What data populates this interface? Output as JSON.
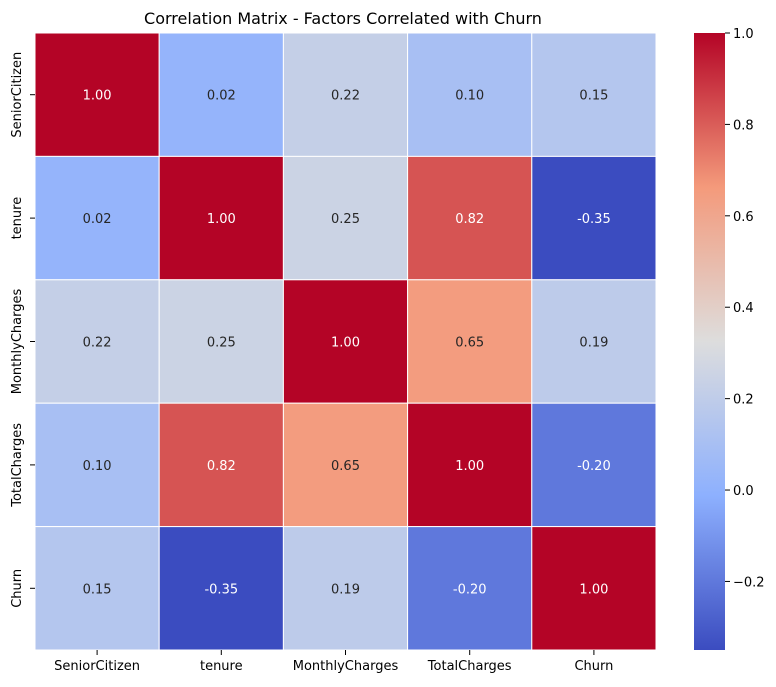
{
  "chart_data": {
    "type": "heatmap",
    "title": "Correlation Matrix - Factors Correlated with Churn",
    "x_labels": [
      "SeniorCitizen",
      "tenure",
      "MonthlyCharges",
      "TotalCharges",
      "Churn"
    ],
    "y_labels": [
      "SeniorCitizen",
      "tenure",
      "MonthlyCharges",
      "TotalCharges",
      "Churn"
    ],
    "values": [
      [
        1.0,
        0.02,
        0.22,
        0.1,
        0.15
      ],
      [
        0.02,
        1.0,
        0.25,
        0.82,
        -0.35
      ],
      [
        0.22,
        0.25,
        1.0,
        0.65,
        0.19
      ],
      [
        0.1,
        0.82,
        0.65,
        1.0,
        -0.2
      ],
      [
        0.15,
        -0.35,
        0.19,
        -0.2,
        1.0
      ]
    ],
    "cell_labels": [
      [
        "1.00",
        "0.02",
        "0.22",
        "0.10",
        "0.15"
      ],
      [
        "0.02",
        "1.00",
        "0.25",
        "0.82",
        "-0.35"
      ],
      [
        "0.22",
        "0.25",
        "1.00",
        "0.65",
        "0.19"
      ],
      [
        "0.10",
        "0.82",
        "0.65",
        "1.00",
        "-0.20"
      ],
      [
        "0.15",
        "-0.35",
        "0.19",
        "-0.20",
        "1.00"
      ]
    ],
    "colormap": "coolwarm",
    "vmin": -0.35,
    "vmax": 1.0,
    "colorbar": {
      "ticks": [
        1.0,
        0.8,
        0.6,
        0.4,
        0.2,
        0.0,
        -0.2
      ],
      "tick_labels": [
        "1.0",
        "0.8",
        "0.6",
        "0.4",
        "0.2",
        "0.0",
        "−0.2"
      ]
    },
    "grid_line_color": "#ffffff"
  }
}
